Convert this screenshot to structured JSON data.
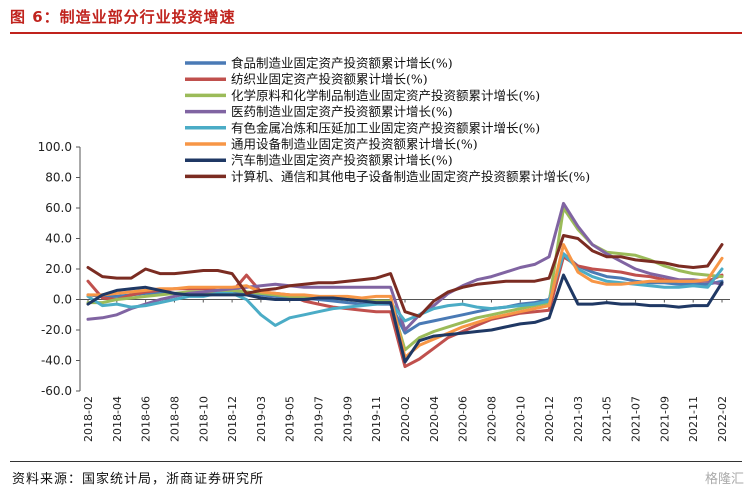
{
  "header": {
    "title": "图 6：制造业部分行业投资增速"
  },
  "footer": {
    "source": "资料来源：国家统计局，浙商证券研究所",
    "watermark": "格隆汇"
  },
  "chart_data": {
    "type": "line",
    "title": "图 6：制造业部分行业投资增速",
    "xlabel": "",
    "ylabel": "",
    "ylim": [
      -60,
      100
    ],
    "yticks": [
      "100.0",
      "80.0",
      "60.0",
      "40.0",
      "20.0",
      "0.0",
      "-20.0",
      "-40.0",
      "-60.0"
    ],
    "grid": false,
    "legend_position": "top",
    "x": [
      "2018-02",
      "2018-03",
      "2018-04",
      "2018-05",
      "2018-06",
      "2018-07",
      "2018-08",
      "2018-09",
      "2018-10",
      "2018-11",
      "2018-12",
      "2019-02",
      "2019-03",
      "2019-04",
      "2019-05",
      "2019-06",
      "2019-07",
      "2019-08",
      "2019-09",
      "2019-10",
      "2019-11",
      "2019-12",
      "2020-02",
      "2020-03",
      "2020-04",
      "2020-05",
      "2020-06",
      "2020-07",
      "2020-08",
      "2020-09",
      "2020-10",
      "2020-11",
      "2020-12",
      "2021-02",
      "2021-03",
      "2021-04",
      "2021-05",
      "2021-06",
      "2021-07",
      "2021-08",
      "2021-09",
      "2021-10",
      "2021-11",
      "2021-12",
      "2022-02"
    ],
    "xtick_labels": [
      "2018-02",
      "2018-04",
      "2018-06",
      "2018-08",
      "2018-10",
      "2018-12",
      "2019-03",
      "2019-05",
      "2019-07",
      "2019-09",
      "2019-11",
      "2020-02",
      "2020-04",
      "2020-06",
      "2020-08",
      "2020-10",
      "2020-12",
      "2021-03",
      "2021-05",
      "2021-07",
      "2021-09",
      "2021-11",
      "2022-02"
    ],
    "series": [
      {
        "name": "食品制造业固定资产投资额累计增长(%)",
        "color": "#4a7ab5",
        "values": [
          3,
          2,
          2,
          3,
          4,
          4,
          4,
          4,
          4,
          4,
          4,
          4,
          3,
          2,
          1,
          1,
          0,
          -1,
          -2,
          -3,
          -3,
          -3,
          -22,
          -16,
          -14,
          -12,
          -10,
          -8,
          -6,
          -5,
          -3,
          -2,
          0,
          30,
          22,
          18,
          15,
          14,
          12,
          11,
          11,
          10,
          10,
          10,
          12
        ]
      },
      {
        "name": "纺织业固定资产投资额累计增长(%)",
        "color": "#c0504d",
        "values": [
          12,
          1,
          0,
          3,
          5,
          6,
          7,
          7,
          7,
          6,
          5,
          16,
          5,
          4,
          3,
          -1,
          -3,
          -5,
          -6,
          -7,
          -8,
          -8,
          -44,
          -39,
          -32,
          -25,
          -21,
          -17,
          -13,
          -11,
          -9,
          -8,
          -7,
          28,
          22,
          20,
          19,
          18,
          16,
          15,
          13,
          12,
          12,
          12,
          16
        ]
      },
      {
        "name": "化学原料和化学制品制造业固定资产投资额累计增长(%)",
        "color": "#9bbb59",
        "values": [
          -2,
          -2,
          0,
          1,
          2,
          3,
          4,
          5,
          5,
          5,
          6,
          5,
          4,
          3,
          2,
          2,
          2,
          1,
          0,
          -1,
          -1,
          -1,
          -33,
          -25,
          -21,
          -18,
          -15,
          -12,
          -10,
          -8,
          -6,
          -4,
          -2,
          60,
          46,
          36,
          31,
          30,
          29,
          26,
          22,
          19,
          17,
          16,
          15
        ]
      },
      {
        "name": "医药制造业固定资产投资额累计增长(%)",
        "color": "#8064a2",
        "values": [
          -13,
          -12,
          -10,
          -6,
          -3,
          0,
          2,
          4,
          5,
          6,
          7,
          8,
          9,
          10,
          9,
          8,
          8,
          8,
          8,
          8,
          8,
          8,
          -20,
          -10,
          -4,
          4,
          9,
          13,
          15,
          18,
          21,
          23,
          28,
          63,
          48,
          36,
          30,
          25,
          20,
          17,
          15,
          13,
          13,
          12,
          10
        ]
      },
      {
        "name": "有色金属冶炼和压延加工业固定资产投资额累计增长(%)",
        "color": "#4bacc6",
        "values": [
          2,
          -4,
          -3,
          -5,
          -4,
          -2,
          0,
          2,
          2,
          4,
          4,
          0,
          -10,
          -17,
          -12,
          -10,
          -8,
          -6,
          -5,
          -4,
          -3,
          -2,
          -14,
          -10,
          -6,
          -4,
          -3,
          -5,
          -6,
          -5,
          -4,
          -3,
          -1,
          30,
          20,
          15,
          12,
          11,
          10,
          9,
          8,
          8,
          9,
          8,
          20
        ]
      },
      {
        "name": "通用设备制造业固定资产投资额累计增长(%)",
        "color": "#f79646",
        "values": [
          3,
          3,
          4,
          5,
          6,
          7,
          7,
          8,
          8,
          8,
          8,
          9,
          5,
          4,
          3,
          3,
          2,
          2,
          2,
          1,
          2,
          2,
          -38,
          -30,
          -26,
          -22,
          -18,
          -15,
          -12,
          -10,
          -8,
          -6,
          -4,
          36,
          18,
          12,
          10,
          10,
          11,
          12,
          12,
          12,
          12,
          13,
          27
        ]
      },
      {
        "name": "汽车制造业固定资产投资额累计增长(%)",
        "color": "#1f3864",
        "values": [
          -3,
          3,
          6,
          7,
          8,
          6,
          4,
          3,
          3,
          3,
          3,
          3,
          1,
          0,
          0,
          0,
          1,
          1,
          0,
          -1,
          -2,
          -2,
          -41,
          -27,
          -24,
          -23,
          -22,
          -21,
          -20,
          -18,
          -16,
          -15,
          -12,
          16,
          -3,
          -3,
          -2,
          -3,
          -3,
          -4,
          -4,
          -5,
          -4,
          -4,
          11
        ]
      },
      {
        "name": "计算机、通信和其他电子设备制造业固定资产投资额累计增长(%)",
        "color": "#7b2c22",
        "values": [
          21,
          15,
          14,
          14,
          20,
          17,
          17,
          18,
          19,
          19,
          17,
          4,
          6,
          7,
          9,
          10,
          11,
          11,
          12,
          13,
          14,
          17,
          -8,
          -11,
          -1,
          5,
          8,
          10,
          11,
          12,
          12,
          12,
          14,
          42,
          40,
          32,
          28,
          28,
          26,
          25,
          24,
          22,
          21,
          22,
          36
        ]
      }
    ]
  }
}
